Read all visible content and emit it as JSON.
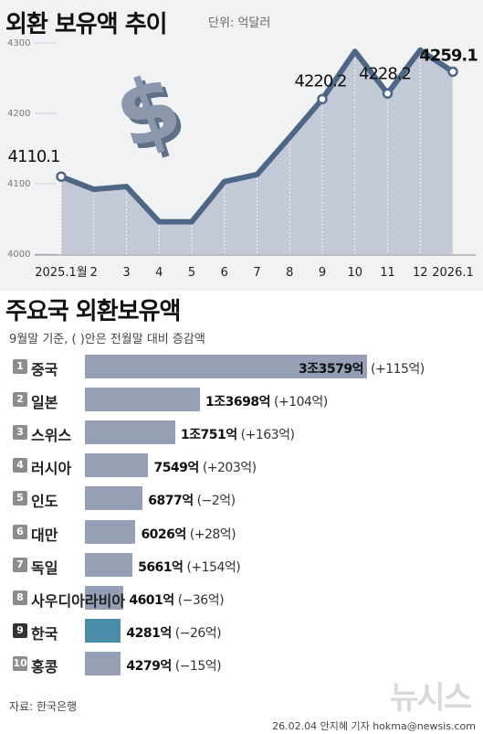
{
  "header": {
    "title": "외환 보유액 추이",
    "unit": "단위: 억달러"
  },
  "chart_data": [
    {
      "type": "area",
      "title": "외환 보유액 추이",
      "categories": [
        "2025.1월",
        "2",
        "3",
        "4",
        "5",
        "6",
        "7",
        "8",
        "9",
        "10",
        "11",
        "12",
        "2026.1"
      ],
      "values": [
        4110.1,
        4092,
        4096,
        4046,
        4046,
        4103,
        4113,
        4166,
        4220.2,
        4288,
        4228.2,
        4290,
        4259.1
      ],
      "ylim": [
        4000,
        4300
      ],
      "yticks": [
        4000,
        4100,
        4200,
        4300
      ],
      "labeled_points": [
        {
          "category": "2025.1월",
          "label": "4110.1"
        },
        {
          "category": "9",
          "label": "4220.2"
        },
        {
          "category": "11",
          "label": "4228.2"
        },
        {
          "category": "2026.1",
          "label": "4259.1"
        }
      ],
      "grid": false,
      "colors": {
        "line": "#4f6786",
        "area": "#c4c9d7"
      }
    },
    {
      "type": "bar",
      "title": "주요국 외환보유액",
      "subtitle": "9월말 기준, ( )안은 전월말 대비 증감액",
      "categories": [
        "중국",
        "일본",
        "스위스",
        "러시아",
        "인도",
        "대만",
        "독일",
        "사우디아라비아",
        "한국",
        "홍콩"
      ],
      "ranks": [
        "1",
        "2",
        "3",
        "4",
        "5",
        "6",
        "7",
        "8",
        "9",
        "10"
      ],
      "values": [
        33579,
        13698,
        10751,
        7549,
        6877,
        6026,
        5661,
        4601,
        4281,
        4279
      ],
      "value_labels": [
        "3조3579억",
        "1조3698억",
        "1조751억",
        "7549억",
        "6877억",
        "6026억",
        "5661억",
        "4601억",
        "4281억",
        "4279억"
      ],
      "change_labels": [
        "(+115억)",
        "(+104억)",
        "(+163억)",
        "(+203억)",
        "(−2억)",
        "(+28억)",
        "(+154억)",
        "(−36억)",
        "(−26억)",
        "(−15억)"
      ],
      "highlight": "한국",
      "colors": {
        "bar": "#95a0b6",
        "highlight": "#4b8ca8"
      }
    }
  ],
  "footer": {
    "source": "자료: 한국은행",
    "credit": "26.02.04 안지혜 기자 hokma@newsis.com",
    "watermark": "뉴시스"
  },
  "decor": {
    "dollar_sign": "$"
  }
}
